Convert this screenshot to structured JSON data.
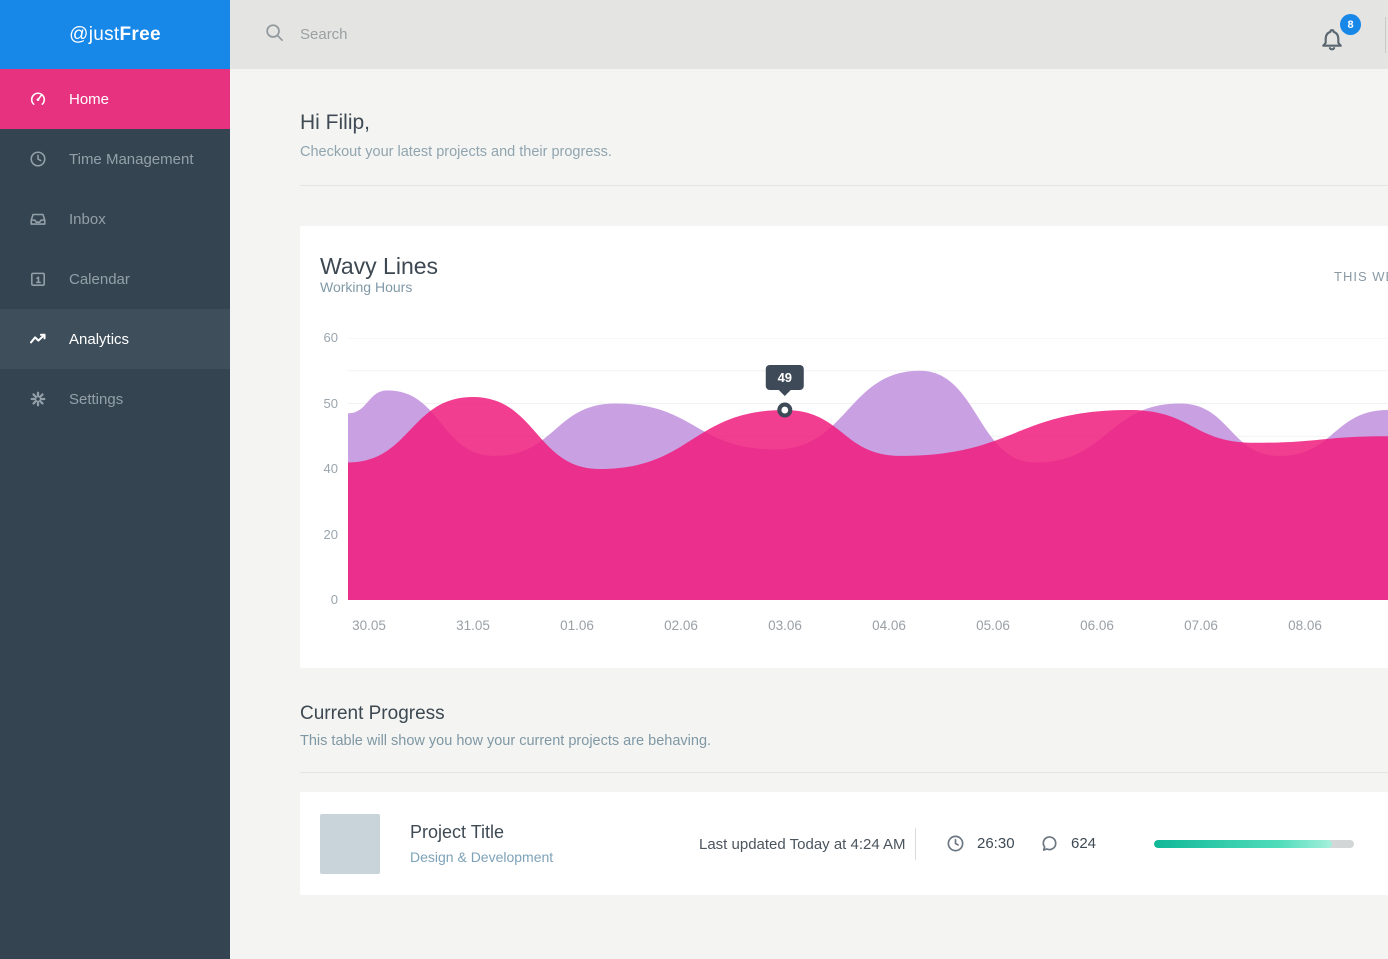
{
  "sidebar": {
    "logo_prefix": "@just",
    "logo_suffix": "Free",
    "items": [
      {
        "label": "Home",
        "icon": "gauge-icon",
        "state": "selected"
      },
      {
        "label": "Time Management",
        "icon": "clock-icon",
        "state": "normal"
      },
      {
        "label": "Inbox",
        "icon": "inbox-icon",
        "state": "normal"
      },
      {
        "label": "Calendar",
        "icon": "calendar-icon",
        "state": "normal"
      },
      {
        "label": "Analytics",
        "icon": "chart-line-icon",
        "state": "highlighted"
      },
      {
        "label": "Settings",
        "icon": "gear-icon",
        "state": "normal"
      }
    ]
  },
  "topbar": {
    "search_placeholder": "Search",
    "notification_count": "8"
  },
  "greeting": {
    "title": "Hi Filip,",
    "subtitle": "Checkout your latest projects and their progress."
  },
  "chart_card": {
    "title": "Wavy Lines",
    "subtitle": "Working Hours",
    "period_label": "THIS WEEK"
  },
  "chart_data": {
    "type": "area",
    "title": "Wavy Lines",
    "subtitle": "Working Hours",
    "x_labels": [
      "30.05",
      "31.05",
      "01.06",
      "02.06",
      "03.06",
      "04.06",
      "05.06",
      "06.06",
      "07.06",
      "08.06"
    ],
    "y_ticks": [
      0,
      20,
      40,
      50,
      60
    ],
    "y_axis_note": "tick labels evenly spaced (non-linear value axis)",
    "grid": "horizontal-half-ticks",
    "legend": "none",
    "series": [
      {
        "name": "purple-wave",
        "color": "#c9a0e2",
        "opacity": 1,
        "points": [
          {
            "x": 0,
            "v": 48.5
          },
          {
            "x": 0.038,
            "v": 52
          },
          {
            "x": 0.141,
            "v": 42
          },
          {
            "x": 0.257,
            "v": 50
          },
          {
            "x": 0.411,
            "v": 43
          },
          {
            "x": 0.55,
            "v": 55
          },
          {
            "x": 0.661,
            "v": 41
          },
          {
            "x": 0.8,
            "v": 50
          },
          {
            "x": 0.896,
            "v": 42
          },
          {
            "x": 1,
            "v": 49
          }
        ]
      },
      {
        "name": "pink-wave",
        "color": "#f01c7c",
        "opacity": 0.85,
        "points": [
          {
            "x": 0,
            "v": 41
          },
          {
            "x": 0.12,
            "v": 51
          },
          {
            "x": 0.242,
            "v": 40
          },
          {
            "x": 0.42,
            "v": 49
          },
          {
            "x": 0.531,
            "v": 42
          },
          {
            "x": 0.752,
            "v": 49
          },
          {
            "x": 0.872,
            "v": 44
          },
          {
            "x": 1,
            "v": 45
          }
        ]
      }
    ],
    "marker": {
      "series": "pink-wave",
      "x": 0.42,
      "x_label": "03.06",
      "value": 49,
      "label": "49"
    }
  },
  "progress_section": {
    "title": "Current Progress",
    "subtitle": "This table will show you how your current projects are behaving."
  },
  "project": {
    "title": "Project Title",
    "category": "Design & Development",
    "last_updated": "Last updated Today at 4:24 AM",
    "time": "26:30",
    "comments": "624",
    "progress_percent": 89,
    "bar_colors": [
      "#10b898",
      "#4fdcba",
      "#a5f0dc"
    ]
  },
  "colors": {
    "brand_blue": "#1787e8",
    "accent_pink": "#e7327f",
    "sidebar_bg": "#344551",
    "tooltip_bg": "#3e4a57",
    "badge_blue": "#1787e8"
  }
}
